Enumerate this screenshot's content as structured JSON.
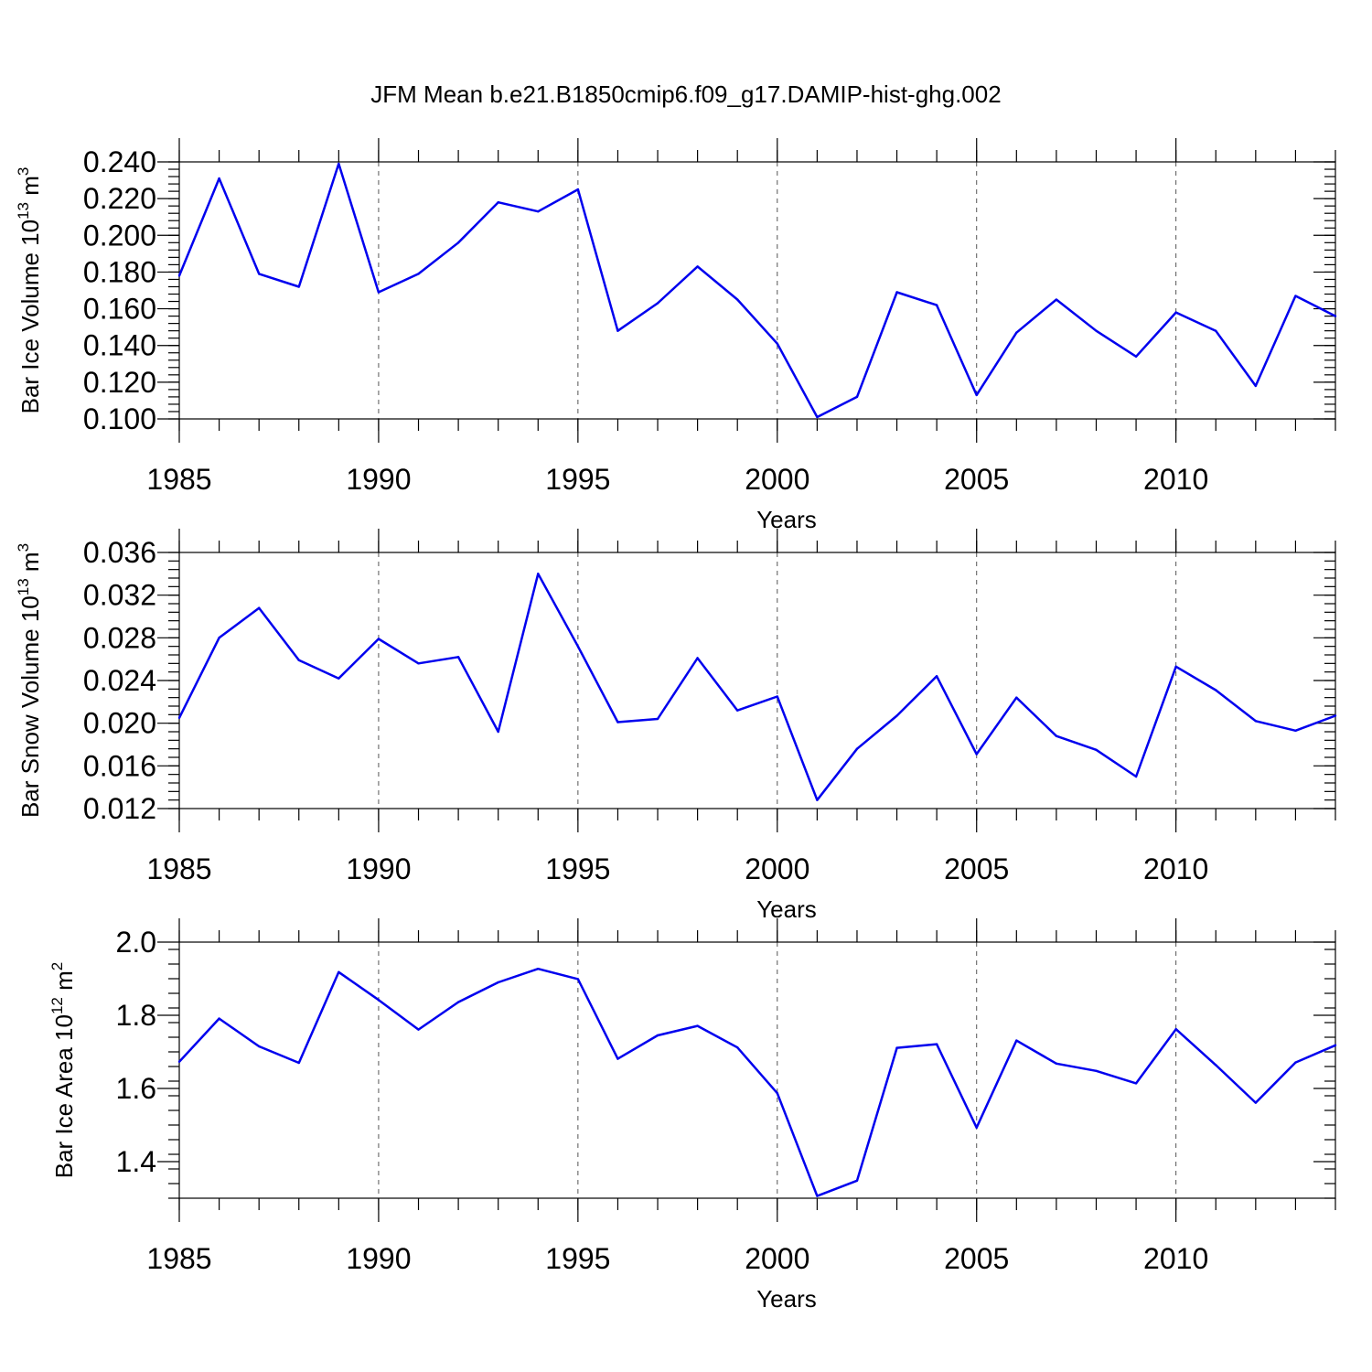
{
  "figure_title": "JFM Mean b.e21.B1850cmip6.f09_g17.DAMIP-hist-ghg.002",
  "colors": {
    "series": "#0000ee",
    "axis": "#000000",
    "grid": "#555555"
  },
  "chart_data": [
    {
      "type": "line",
      "ylabel": {
        "text": "Bar Ice Volume 10",
        "sup": "13",
        "unit": " m",
        "unit_sup": "3"
      },
      "xlabel": "Years",
      "xlim": [
        1985,
        2014
      ],
      "ylim": [
        0.1,
        0.24
      ],
      "xticks": [
        1985,
        1990,
        1995,
        2000,
        2005,
        2010
      ],
      "xtick_labels": [
        "1985",
        "1990",
        "1995",
        "2000",
        "2005",
        "2010"
      ],
      "yticks": [
        0.1,
        0.12,
        0.14,
        0.16,
        0.18,
        0.2,
        0.22,
        0.24
      ],
      "ytick_labels": [
        "0.100",
        "0.120",
        "0.140",
        "0.160",
        "0.180",
        "0.200",
        "0.220",
        "0.240"
      ],
      "x": [
        1985,
        1986,
        1987,
        1988,
        1989,
        1990,
        1991,
        1992,
        1993,
        1994,
        1995,
        1996,
        1997,
        1998,
        1999,
        2000,
        2001,
        2002,
        2003,
        2004,
        2005,
        2006,
        2007,
        2008,
        2009,
        2010,
        2011,
        2012,
        2013,
        2014
      ],
      "values": [
        0.178,
        0.231,
        0.179,
        0.172,
        0.239,
        0.169,
        0.179,
        0.196,
        0.218,
        0.213,
        0.225,
        0.148,
        0.163,
        0.183,
        0.165,
        0.141,
        0.101,
        0.112,
        0.169,
        0.162,
        0.113,
        0.147,
        0.165,
        0.148,
        0.134,
        0.158,
        0.148,
        0.118,
        0.167,
        0.156
      ]
    },
    {
      "type": "line",
      "ylabel": {
        "text": "Bar Snow Volume 10",
        "sup": "13",
        "unit": " m",
        "unit_sup": "3"
      },
      "xlabel": "Years",
      "xlim": [
        1985,
        2014
      ],
      "ylim": [
        0.012,
        0.036
      ],
      "xticks": [
        1985,
        1990,
        1995,
        2000,
        2005,
        2010
      ],
      "xtick_labels": [
        "1985",
        "1990",
        "1995",
        "2000",
        "2005",
        "2010"
      ],
      "yticks": [
        0.012,
        0.016,
        0.02,
        0.024,
        0.028,
        0.032,
        0.036
      ],
      "ytick_labels": [
        "0.012",
        "0.016",
        "0.020",
        "0.024",
        "0.028",
        "0.032",
        "0.036"
      ],
      "x": [
        1985,
        1986,
        1987,
        1988,
        1989,
        1990,
        1991,
        1992,
        1993,
        1994,
        1995,
        1996,
        1997,
        1998,
        1999,
        2000,
        2001,
        2002,
        2003,
        2004,
        2005,
        2006,
        2007,
        2008,
        2009,
        2010,
        2011,
        2012,
        2013,
        2014
      ],
      "values": [
        0.0205,
        0.028,
        0.0308,
        0.0259,
        0.0242,
        0.0279,
        0.0256,
        0.0262,
        0.0192,
        0.034,
        0.0272,
        0.0201,
        0.0204,
        0.0261,
        0.0212,
        0.0225,
        0.0128,
        0.0176,
        0.0207,
        0.0244,
        0.0171,
        0.0224,
        0.0188,
        0.0175,
        0.015,
        0.0253,
        0.0231,
        0.0202,
        0.0193,
        0.0207
      ]
    },
    {
      "type": "line",
      "ylabel": {
        "text": "Bar Ice Area 10",
        "sup": "12",
        "unit": " m",
        "unit_sup": "2"
      },
      "xlabel": "Years",
      "xlim": [
        1985,
        2014
      ],
      "ylim": [
        1.3,
        2.0
      ],
      "xticks": [
        1985,
        1990,
        1995,
        2000,
        2005,
        2010
      ],
      "xtick_labels": [
        "1985",
        "1990",
        "1995",
        "2000",
        "2005",
        "2010"
      ],
      "yticks": [
        1.4,
        1.6,
        1.8,
        2.0
      ],
      "ytick_labels": [
        "1.4",
        "1.6",
        "1.8",
        "2.0"
      ],
      "x": [
        1985,
        1986,
        1987,
        1988,
        1989,
        1990,
        1991,
        1992,
        1993,
        1994,
        1995,
        1996,
        1997,
        1998,
        1999,
        2000,
        2001,
        2002,
        2003,
        2004,
        2005,
        2006,
        2007,
        2008,
        2009,
        2010,
        2011,
        2012,
        2013,
        2014
      ],
      "values": [
        1.673,
        1.791,
        1.715,
        1.67,
        1.918,
        1.842,
        1.761,
        1.836,
        1.89,
        1.927,
        1.899,
        1.681,
        1.745,
        1.771,
        1.712,
        1.587,
        1.306,
        1.348,
        1.711,
        1.721,
        1.493,
        1.731,
        1.668,
        1.648,
        1.614,
        1.762,
        1.664,
        1.561,
        1.671,
        1.718
      ]
    }
  ]
}
